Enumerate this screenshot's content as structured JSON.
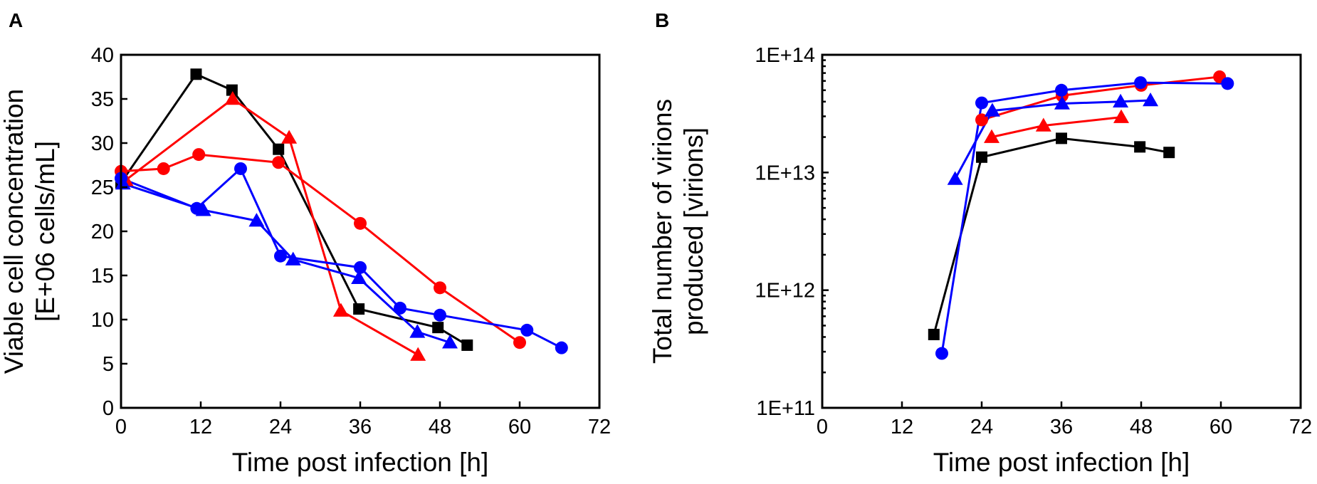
{
  "figure": {
    "panels": [
      "A",
      "B"
    ]
  },
  "chart_data": [
    {
      "panel": "A",
      "type": "line",
      "title": "",
      "xlabel": "Time post infection [h]",
      "ylabel": [
        "Viable cell concentration",
        "[E+06 cells/mL]"
      ],
      "xlim": [
        0,
        72
      ],
      "ylim": [
        0,
        40
      ],
      "yscale": "linear",
      "xticks": [
        0,
        12,
        24,
        36,
        48,
        60,
        72
      ],
      "yticks": [
        0,
        5,
        10,
        15,
        20,
        25,
        30,
        35,
        40
      ],
      "xtick_labels": [
        "0",
        "12",
        "24",
        "36",
        "48",
        "60",
        "72"
      ],
      "ytick_labels": [
        "0",
        "5",
        "10",
        "15",
        "20",
        "25",
        "30",
        "35",
        "40"
      ],
      "legend": "none",
      "series": [
        {
          "name": "black squares",
          "color": "#000000",
          "marker": "square",
          "x": [
            0,
            11.3,
            16.7,
            23.7,
            35.8,
            47.7,
            52.1
          ],
          "y": [
            25.5,
            37.8,
            36.0,
            29.3,
            11.2,
            9.1,
            7.1
          ]
        },
        {
          "name": "red circles",
          "color": "#ff0000",
          "marker": "circle",
          "x": [
            0,
            6.4,
            11.7,
            23.7,
            36.0,
            48.0,
            60.0
          ],
          "y": [
            26.8,
            27.1,
            28.7,
            27.8,
            20.9,
            13.6,
            7.4
          ]
        },
        {
          "name": "red triangles",
          "color": "#ff0000",
          "marker": "triangle",
          "x": [
            0.7,
            16.8,
            25.3,
            33.1,
            44.7
          ],
          "y": [
            25.8,
            35.0,
            30.6,
            11.0,
            6.0
          ]
        },
        {
          "name": "blue circles",
          "color": "#0000ff",
          "marker": "circle",
          "x": [
            0,
            11.4,
            18.0,
            24.0,
            36.0,
            42.0,
            48.0,
            61.1,
            66.3
          ],
          "y": [
            26.0,
            22.6,
            27.1,
            17.2,
            15.9,
            11.3,
            10.5,
            8.8,
            6.8
          ]
        },
        {
          "name": "blue triangles",
          "color": "#0000ff",
          "marker": "triangle",
          "x": [
            0.3,
            12.4,
            20.4,
            25.9,
            35.8,
            44.6,
            49.5
          ],
          "y": [
            25.4,
            22.4,
            21.2,
            16.8,
            14.7,
            8.6,
            7.4
          ]
        }
      ]
    },
    {
      "panel": "B",
      "type": "line",
      "title": "",
      "xlabel": "Time post infection [h]",
      "ylabel": [
        "Total number of virions",
        "produced [virions]"
      ],
      "xlim": [
        0,
        72
      ],
      "ylim": [
        100000000000,
        100000000000000
      ],
      "yscale": "log",
      "xticks": [
        0,
        12,
        24,
        36,
        48,
        60,
        72
      ],
      "yticks": [
        100000000000,
        1000000000000,
        10000000000000,
        100000000000000
      ],
      "xtick_labels": [
        "0",
        "12",
        "24",
        "36",
        "48",
        "60",
        "72"
      ],
      "ytick_labels": [
        "1E+11",
        "1E+12",
        "1E+13",
        "1E+14"
      ],
      "legend": "none",
      "series": [
        {
          "name": "black squares",
          "color": "#000000",
          "marker": "square",
          "x": [
            16.8,
            24.0,
            36.0,
            47.8,
            52.2
          ],
          "y": [
            420000000000,
            13500000000000,
            19500000000000,
            16500000000000,
            14800000000000
          ]
        },
        {
          "name": "red circles",
          "color": "#ff0000",
          "marker": "circle",
          "x": [
            24.0,
            36.1,
            48.0,
            59.8
          ],
          "y": [
            28000000000000,
            45000000000000,
            55000000000000,
            65000000000000
          ]
        },
        {
          "name": "red triangles",
          "color": "#ff0000",
          "marker": "triangle",
          "x": [
            25.5,
            33.3,
            45.0
          ],
          "y": [
            20000000000000,
            25000000000000,
            29500000000000
          ]
        },
        {
          "name": "blue circles",
          "color": "#0000ff",
          "marker": "circle",
          "x": [
            18.0,
            24.0,
            36.0,
            47.9,
            61.0
          ],
          "y": [
            290000000000,
            39000000000000,
            50000000000000,
            58000000000000,
            57000000000000
          ]
        },
        {
          "name": "blue triangles",
          "color": "#0000ff",
          "marker": "triangle",
          "x": [
            20.0,
            25.6,
            36.1,
            44.9,
            49.4
          ],
          "y": [
            8800000000000,
            33500000000000,
            38500000000000,
            40000000000000,
            41000000000000
          ]
        }
      ]
    }
  ]
}
